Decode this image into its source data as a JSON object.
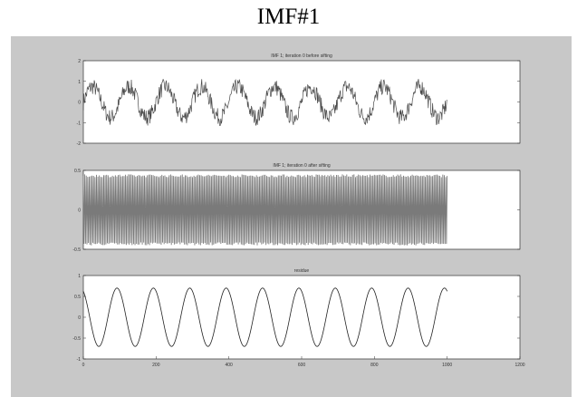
{
  "page": {
    "title": "IMF#1"
  },
  "chart_data": [
    {
      "type": "line",
      "title": "IMF 1;   iteration 0 before sifting",
      "xlim": [
        0,
        1200
      ],
      "ylim": [
        -2,
        2
      ],
      "yticks": [
        -2,
        -1,
        0,
        1,
        2
      ],
      "xticks": [],
      "series": [
        {
          "kind": "noisy-sine",
          "x_end": 1000,
          "cycles": 10,
          "amplitude": 0.75,
          "noise": 0.4,
          "color": "#4a4a4a"
        }
      ]
    },
    {
      "type": "line",
      "title": "IMF 1;   iteration 0 after sifting",
      "xlim": [
        0,
        1200
      ],
      "ylim": [
        -0.5,
        0.5
      ],
      "yticks": [
        -0.5,
        0,
        0.5
      ],
      "xticks": [],
      "series": [
        {
          "kind": "dense-oscillation",
          "x_end": 1000,
          "amplitude": 0.45,
          "color": "#7a7a7a"
        }
      ]
    },
    {
      "type": "line",
      "title": "residue",
      "xlim": [
        0,
        1200
      ],
      "ylim": [
        -1,
        1
      ],
      "yticks": [
        -1,
        -0.5,
        0,
        0.5,
        1
      ],
      "xticks": [
        0,
        200,
        400,
        600,
        800,
        1000,
        1200
      ],
      "series": [
        {
          "kind": "sine",
          "x_end": 1000,
          "cycles": 10,
          "amplitude": 0.7,
          "color": "#222222"
        }
      ]
    }
  ]
}
